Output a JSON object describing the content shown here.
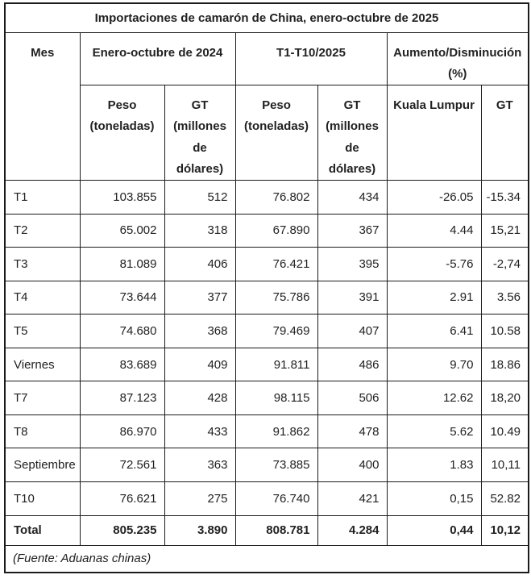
{
  "title": "Importaciones de camarón de China, enero-octubre de 2025",
  "columns": {
    "mes": "Mes",
    "group_2024": "Enero-octubre de 2024",
    "group_2025": "T1-T10/2025",
    "group_change": "Aumento/Disminución (%)",
    "sub": [
      "Peso (toneladas)",
      "GT (millones de dólares)",
      "Peso (toneladas)",
      "GT (millones de dólares)",
      "Kuala Lumpur",
      "GT"
    ]
  },
  "rows": [
    {
      "mes": "T1",
      "cells": [
        "103.855",
        "512",
        "76.802",
        "434",
        "-26.05",
        "-15.34"
      ]
    },
    {
      "mes": "T2",
      "cells": [
        "65.002",
        "318",
        "67.890",
        "367",
        "4.44",
        "15,21"
      ]
    },
    {
      "mes": "T3",
      "cells": [
        "81.089",
        "406",
        "76.421",
        "395",
        "-5.76",
        "-2,74"
      ]
    },
    {
      "mes": "T4",
      "cells": [
        "73.644",
        "377",
        "75.786",
        "391",
        "2.91",
        "3.56"
      ]
    },
    {
      "mes": "T5",
      "cells": [
        "74.680",
        "368",
        "79.469",
        "407",
        "6.41",
        "10.58"
      ]
    },
    {
      "mes": "Viernes",
      "cells": [
        "83.689",
        "409",
        "91.811",
        "486",
        "9.70",
        "18.86"
      ]
    },
    {
      "mes": "T7",
      "cells": [
        "87.123",
        "428",
        "98.115",
        "506",
        "12.62",
        "18,20"
      ]
    },
    {
      "mes": "T8",
      "cells": [
        "86.970",
        "433",
        "91.862",
        "478",
        "5.62",
        "10.49"
      ]
    },
    {
      "mes": "Septiembre",
      "cells": [
        "72.561",
        "363",
        "73.885",
        "400",
        "1.83",
        "10,11"
      ]
    },
    {
      "mes": "T10",
      "cells": [
        "76.621",
        "275",
        "76.740",
        "421",
        "0,15",
        "52.82"
      ]
    }
  ],
  "total": {
    "mes": "Total",
    "cells": [
      "805.235",
      "3.890",
      "808.781",
      "4.284",
      "0,44",
      "10,12"
    ]
  },
  "footer": "(Fuente: Aduanas chinas)",
  "colors": {
    "text": "#212121",
    "border": "#1b1b1b",
    "background": "#ffffff"
  }
}
